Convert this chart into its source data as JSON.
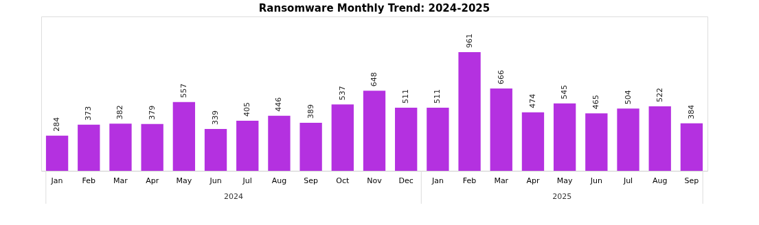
{
  "chart_data": {
    "type": "bar",
    "title": "Ransomware Monthly Trend: 2024-2025",
    "categories": [
      "Jan",
      "Feb",
      "Mar",
      "Apr",
      "May",
      "Jun",
      "Jul",
      "Aug",
      "Sep",
      "Oct",
      "Nov",
      "Dec",
      "Jan",
      "Feb",
      "Mar",
      "Apr",
      "May",
      "Jun",
      "Jul",
      "Aug",
      "Sep"
    ],
    "values": [
      284,
      373,
      382,
      379,
      557,
      339,
      405,
      446,
      389,
      537,
      648,
      511,
      511,
      961,
      666,
      474,
      545,
      465,
      504,
      522,
      384
    ],
    "color": "#b431e0",
    "data_labels": true,
    "annotations": [
      "2024",
      "2025"
    ]
  }
}
